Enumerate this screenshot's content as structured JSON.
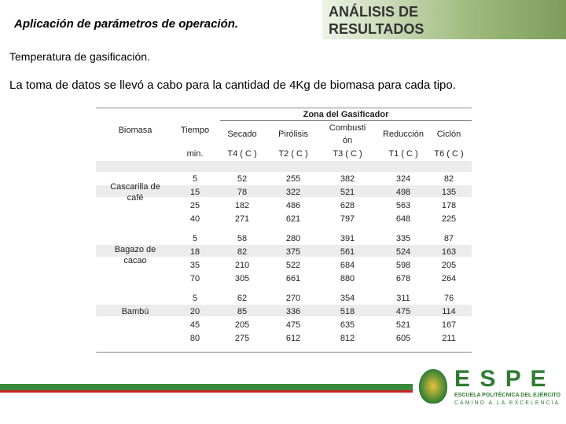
{
  "header": {
    "title": "Aplicación de parámetros de operación.",
    "section": "ANÁLISIS DE RESULTADOS"
  },
  "subtitle": "Temperatura de gasificación.",
  "description": "La toma de datos se llevó a cabo para la cantidad de 4Kg de biomasa para cada tipo.",
  "table": {
    "zone_header": "Zona del Gasificador",
    "columns": [
      "Biomasa",
      "Tiempo",
      "Secado",
      "Pirólisis",
      "Combustión",
      "Reducción",
      "Ciclón"
    ],
    "units": [
      "min.",
      "T4 ( C )",
      "T2 ( C )",
      "T3 ( C )",
      "T1 ( C )",
      "T6 ( C )"
    ],
    "groups": [
      {
        "name": "Cascarilla de café",
        "rows": [
          [
            5,
            52,
            255,
            382,
            324,
            82
          ],
          [
            15,
            78,
            322,
            521,
            498,
            135
          ],
          [
            25,
            182,
            486,
            628,
            563,
            178
          ],
          [
            40,
            271,
            621,
            797,
            648,
            225
          ]
        ]
      },
      {
        "name": "Bagazo de cacao",
        "rows": [
          [
            5,
            58,
            280,
            391,
            335,
            87
          ],
          [
            18,
            82,
            375,
            561,
            524,
            163
          ],
          [
            35,
            210,
            522,
            684,
            598,
            205
          ],
          [
            70,
            305,
            661,
            880,
            678,
            264
          ]
        ]
      },
      {
        "name": "Bambú",
        "rows": [
          [
            5,
            62,
            270,
            354,
            311,
            76
          ],
          [
            20,
            85,
            336,
            518,
            475,
            114
          ],
          [
            45,
            205,
            475,
            635,
            521,
            167
          ],
          [
            80,
            275,
            612,
            812,
            605,
            211
          ]
        ]
      }
    ]
  },
  "logo": {
    "name": "E S P E",
    "institution": "ESCUELA POLITÉCNICA DEL EJÉRCITO",
    "motto": "CAMINO A LA EXCELENCIA"
  }
}
